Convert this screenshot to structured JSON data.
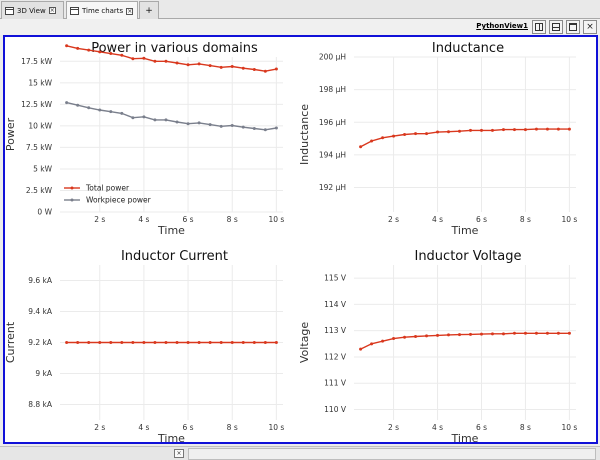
{
  "tabs": [
    {
      "label": "3D View",
      "active": false
    },
    {
      "label": "Time charts",
      "active": true
    }
  ],
  "add_tab_label": "+",
  "close_glyph": "×",
  "view": {
    "title": "PythonView1",
    "close_glyph": "×"
  },
  "theme": {
    "accent": "#1010d8",
    "series_red": "#d9381e",
    "series_gray": "#7a7f8c",
    "grid": "#ebebeb"
  },
  "icons": [
    "tab-view-icon",
    "split-horizontal-icon",
    "split-vertical-icon",
    "maximize-icon",
    "close-icon"
  ],
  "chart_data": [
    {
      "type": "line",
      "title": "Power in various domains",
      "xlabel": "Time",
      "ylabel": "Power",
      "x": [
        0.5,
        1.0,
        1.5,
        2.0,
        2.5,
        3.0,
        3.5,
        4.0,
        4.5,
        5.0,
        5.5,
        6.0,
        6.5,
        7.0,
        7.5,
        8.0,
        8.5,
        9.0,
        9.5,
        10.0
      ],
      "xlim": [
        0.2,
        10.3
      ],
      "xticks": [
        2,
        4,
        6,
        8,
        10
      ],
      "xtick_labels": [
        "2 s",
        "4 s",
        "6 s",
        "8 s",
        "10 s"
      ],
      "ylim": [
        0,
        18000
      ],
      "yticks": [
        0,
        2500,
        5000,
        7500,
        10000,
        12500,
        15000,
        17500
      ],
      "ytick_labels": [
        "0 W",
        "2.5 kW",
        "5 kW",
        "7.5 kW",
        "10 kW",
        "12.5 kW",
        "15 kW",
        "17.5 kW"
      ],
      "legend": "bottom-left",
      "series": [
        {
          "name": "Total power",
          "color": "#d9381e",
          "values": [
            19300,
            19000,
            18800,
            18600,
            18400,
            18200,
            17800,
            17850,
            17500,
            17500,
            17300,
            17100,
            17200,
            17000,
            16800,
            16900,
            16700,
            16550,
            16350,
            16600
          ]
        },
        {
          "name": "Workpiece power",
          "color": "#7a7f8c",
          "values": [
            12700,
            12400,
            12100,
            11850,
            11650,
            11450,
            10950,
            11050,
            10700,
            10700,
            10450,
            10250,
            10350,
            10150,
            9950,
            10050,
            9850,
            9700,
            9550,
            9750
          ]
        }
      ]
    },
    {
      "type": "line",
      "title": "Inductance",
      "xlabel": "Time",
      "ylabel": "Inductance",
      "x": [
        0.5,
        1.0,
        1.5,
        2.0,
        2.5,
        3.0,
        3.5,
        4.0,
        4.5,
        5.0,
        5.5,
        6.0,
        6.5,
        7.0,
        7.5,
        8.0,
        8.5,
        9.0,
        9.5,
        10.0
      ],
      "xlim": [
        0.2,
        10.3
      ],
      "xticks": [
        2,
        4,
        6,
        8,
        10
      ],
      "xtick_labels": [
        "2 s",
        "4 s",
        "6 s",
        "8 s",
        "10 s"
      ],
      "ylim": [
        190.5,
        200
      ],
      "yticks": [
        192,
        194,
        196,
        198,
        200
      ],
      "ytick_labels": [
        "192 µH",
        "194 µH",
        "196 µH",
        "198 µH",
        "200 µH"
      ],
      "series": [
        {
          "color": "#d9381e",
          "values": [
            194.5,
            194.85,
            195.05,
            195.15,
            195.25,
            195.3,
            195.3,
            195.4,
            195.42,
            195.45,
            195.5,
            195.5,
            195.5,
            195.55,
            195.55,
            195.55,
            195.58,
            195.58,
            195.58,
            195.58
          ]
        }
      ]
    },
    {
      "type": "line",
      "title": "Inductor Current",
      "xlabel": "Time",
      "ylabel": "Current",
      "x": [
        0.5,
        1.0,
        1.5,
        2.0,
        2.5,
        3.0,
        3.5,
        4.0,
        4.5,
        5.0,
        5.5,
        6.0,
        6.5,
        7.0,
        7.5,
        8.0,
        8.5,
        9.0,
        9.5,
        10.0
      ],
      "xlim": [
        0.2,
        10.3
      ],
      "xticks": [
        2,
        4,
        6,
        8,
        10
      ],
      "xtick_labels": [
        "2 s",
        "4 s",
        "6 s",
        "8 s",
        "10 s"
      ],
      "ylim": [
        8.7,
        9.7
      ],
      "yticks": [
        8.8,
        9.0,
        9.2,
        9.4,
        9.6
      ],
      "ytick_labels": [
        "8.8 kA",
        "9 kA",
        "9.2 kA",
        "9.4 kA",
        "9.6 kA"
      ],
      "series": [
        {
          "color": "#d9381e",
          "values": [
            9.2,
            9.2,
            9.2,
            9.2,
            9.2,
            9.2,
            9.2,
            9.2,
            9.2,
            9.2,
            9.2,
            9.2,
            9.2,
            9.2,
            9.2,
            9.2,
            9.2,
            9.2,
            9.2,
            9.2
          ]
        }
      ]
    },
    {
      "type": "line",
      "title": "Inductor Voltage",
      "xlabel": "Time",
      "ylabel": "Voltage",
      "x": [
        0.5,
        1.0,
        1.5,
        2.0,
        2.5,
        3.0,
        3.5,
        4.0,
        4.5,
        5.0,
        5.5,
        6.0,
        6.5,
        7.0,
        7.5,
        8.0,
        8.5,
        9.0,
        9.5,
        10.0
      ],
      "xlim": [
        0.2,
        10.3
      ],
      "xticks": [
        2,
        4,
        6,
        8,
        10
      ],
      "xtick_labels": [
        "2 s",
        "4 s",
        "6 s",
        "8 s",
        "10 s"
      ],
      "ylim": [
        109.6,
        115.5
      ],
      "yticks": [
        110,
        111,
        112,
        113,
        114,
        115
      ],
      "ytick_labels": [
        "110 V",
        "111 V",
        "112 V",
        "113 V",
        "114 V",
        "115 V"
      ],
      "series": [
        {
          "color": "#d9381e",
          "values": [
            112.3,
            112.5,
            112.6,
            112.7,
            112.75,
            112.78,
            112.8,
            112.82,
            112.84,
            112.85,
            112.86,
            112.87,
            112.88,
            112.88,
            112.9,
            112.9,
            112.9,
            112.9,
            112.9,
            112.9
          ]
        }
      ]
    }
  ]
}
